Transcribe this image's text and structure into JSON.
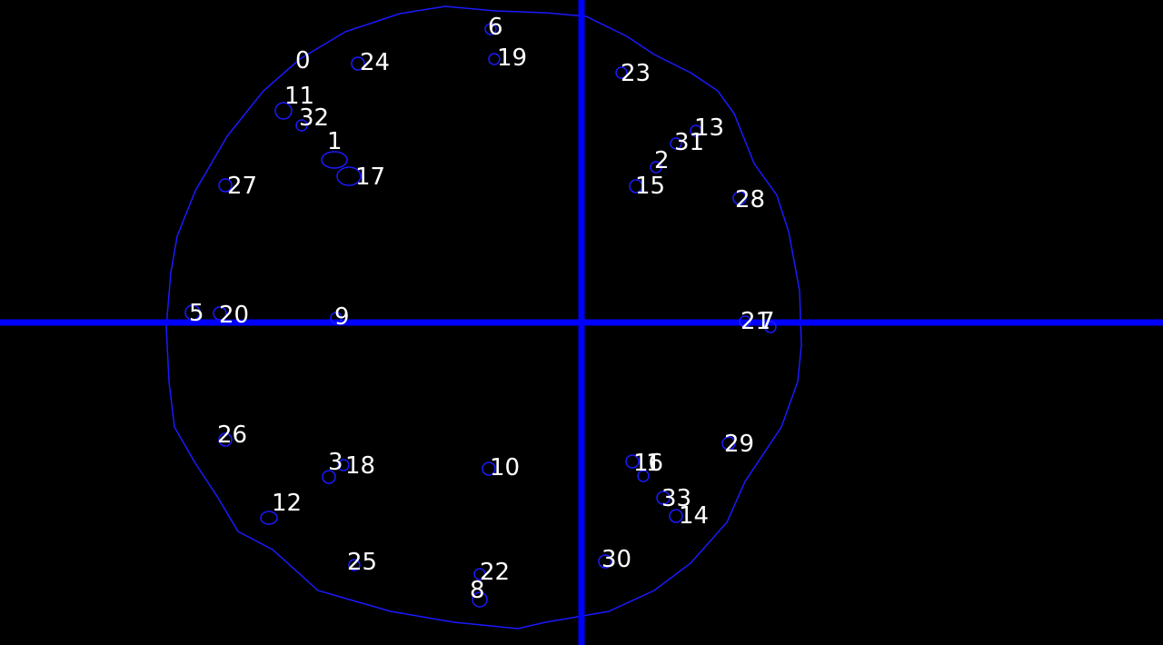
{
  "colors": {
    "background": "#000000",
    "outline": "#1a1aff",
    "crosshair": "#0000ff",
    "label": "#ffffff"
  },
  "labels": [
    "0",
    "24",
    "6",
    "19",
    "23",
    "11",
    "32",
    "1",
    "17",
    "13",
    "31",
    "2",
    "15",
    "28",
    "27",
    "5",
    "20",
    "9",
    "21",
    "7",
    "26",
    "3",
    "18",
    "10",
    "16",
    "1",
    "29",
    "12",
    "33",
    "14",
    "25",
    "22",
    "8",
    "30"
  ]
}
